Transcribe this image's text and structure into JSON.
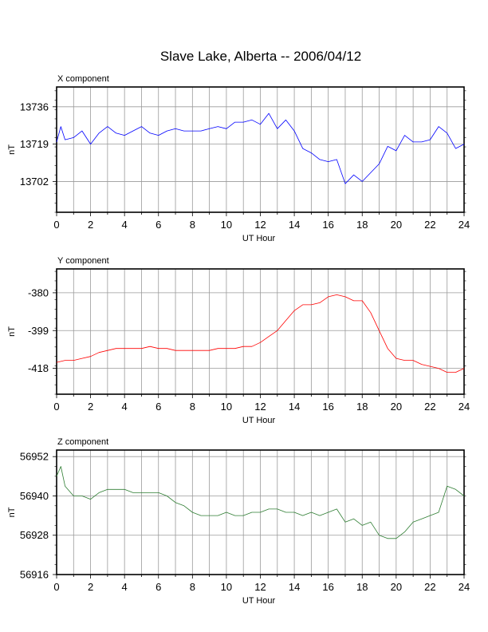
{
  "title": "Slave Lake, Alberta -- 2006/04/12",
  "chart_data": [
    {
      "type": "line",
      "title": "X component",
      "xlabel": "UT Hour",
      "ylabel": "nT",
      "xlim": [
        0,
        24
      ],
      "ylim": [
        13688,
        13745
      ],
      "xticks": [
        0,
        2,
        4,
        6,
        8,
        10,
        12,
        14,
        16,
        18,
        20,
        22,
        24
      ],
      "yticks": [
        13736,
        13719,
        13702
      ],
      "grid": true,
      "color": "#0000ff",
      "x": [
        0,
        0.25,
        0.5,
        1,
        1.5,
        2,
        2.5,
        3,
        3.5,
        4,
        4.5,
        5,
        5.5,
        6,
        6.5,
        7,
        7.5,
        8,
        8.5,
        9,
        9.5,
        10,
        10.5,
        11,
        11.5,
        12,
        12.5,
        13,
        13.5,
        14,
        14.5,
        15,
        15.5,
        16,
        16.5,
        17,
        17.5,
        18,
        18.5,
        19,
        19.5,
        20,
        20.5,
        21,
        21.5,
        22,
        22.5,
        23,
        23.5,
        24
      ],
      "y": [
        13720,
        13727,
        13721,
        13722,
        13725,
        13719,
        13724,
        13727,
        13724,
        13723,
        13725,
        13727,
        13724,
        13723,
        13725,
        13726,
        13725,
        13725,
        13725,
        13726,
        13727,
        13726,
        13729,
        13729,
        13730,
        13728,
        13733,
        13726,
        13730,
        13725,
        13717,
        13715,
        13712,
        13711,
        13712,
        13701,
        13705,
        13702,
        13706,
        13710,
        13718,
        13716,
        13723,
        13720,
        13720,
        13721,
        13727,
        13724,
        13717,
        13719
      ]
    },
    {
      "type": "line",
      "title": "Y component",
      "xlabel": "UT Hour",
      "ylabel": "nT",
      "xlim": [
        0,
        24
      ],
      "ylim": [
        -431,
        -368
      ],
      "xticks": [
        0,
        2,
        4,
        6,
        8,
        10,
        12,
        14,
        16,
        18,
        20,
        22,
        24
      ],
      "yticks": [
        -380,
        -399,
        -418
      ],
      "grid": true,
      "color": "#ff0000",
      "x": [
        0,
        0.5,
        1,
        1.5,
        2,
        2.5,
        3,
        3.5,
        4,
        4.5,
        5,
        5.5,
        6,
        6.5,
        7,
        7.5,
        8,
        8.5,
        9,
        9.5,
        10,
        10.5,
        11,
        11.5,
        12,
        12.5,
        13,
        13.5,
        14,
        14.5,
        15,
        15.5,
        16,
        16.5,
        17,
        17.5,
        18,
        18.5,
        19,
        19.5,
        20,
        20.5,
        21,
        21.5,
        22,
        22.5,
        23,
        23.5,
        24
      ],
      "y": [
        -415,
        -414,
        -414,
        -413,
        -412,
        -410,
        -409,
        -408,
        -408,
        -408,
        -408,
        -407,
        -408,
        -408,
        -409,
        -409,
        -409,
        -409,
        -409,
        -408,
        -408,
        -408,
        -407,
        -407,
        -405,
        -402,
        -399,
        -394,
        -389,
        -386,
        -386,
        -385,
        -382,
        -381,
        -382,
        -384,
        -384,
        -390,
        -399,
        -408,
        -413,
        -414,
        -414,
        -416,
        -417,
        -418,
        -420,
        -420,
        -418
      ]
    },
    {
      "type": "line",
      "title": "Z component",
      "xlabel": "UT Hour",
      "ylabel": "nT",
      "xlim": [
        0,
        24
      ],
      "ylim": [
        56916,
        56954
      ],
      "xticks": [
        0,
        2,
        4,
        6,
        8,
        10,
        12,
        14,
        16,
        18,
        20,
        22,
        24
      ],
      "yticks": [
        56952,
        56940,
        56928,
        56916
      ],
      "grid": true,
      "color": "#2e7d32",
      "x": [
        0,
        0.25,
        0.5,
        1,
        1.5,
        2,
        2.5,
        3,
        3.5,
        4,
        4.5,
        5,
        5.5,
        6,
        6.5,
        7,
        7.5,
        8,
        8.5,
        9,
        9.5,
        10,
        10.5,
        11,
        11.5,
        12,
        12.5,
        13,
        13.5,
        14,
        14.5,
        15,
        15.5,
        16,
        16.5,
        17,
        17.5,
        18,
        18.5,
        19,
        19.5,
        20,
        20.5,
        21,
        21.5,
        22,
        22.5,
        23,
        23.5,
        24
      ],
      "y": [
        56946,
        56949,
        56943,
        56940,
        56940,
        56939,
        56941,
        56942,
        56942,
        56942,
        56941,
        56941,
        56941,
        56941,
        56940,
        56938,
        56937,
        56935,
        56934,
        56934,
        56934,
        56935,
        56934,
        56934,
        56935,
        56935,
        56936,
        56936,
        56935,
        56935,
        56934,
        56935,
        56934,
        56935,
        56936,
        56932,
        56933,
        56931,
        56932,
        56928,
        56927,
        56927,
        56929,
        56932,
        56933,
        56934,
        56935,
        56943,
        56942,
        56940
      ]
    }
  ]
}
